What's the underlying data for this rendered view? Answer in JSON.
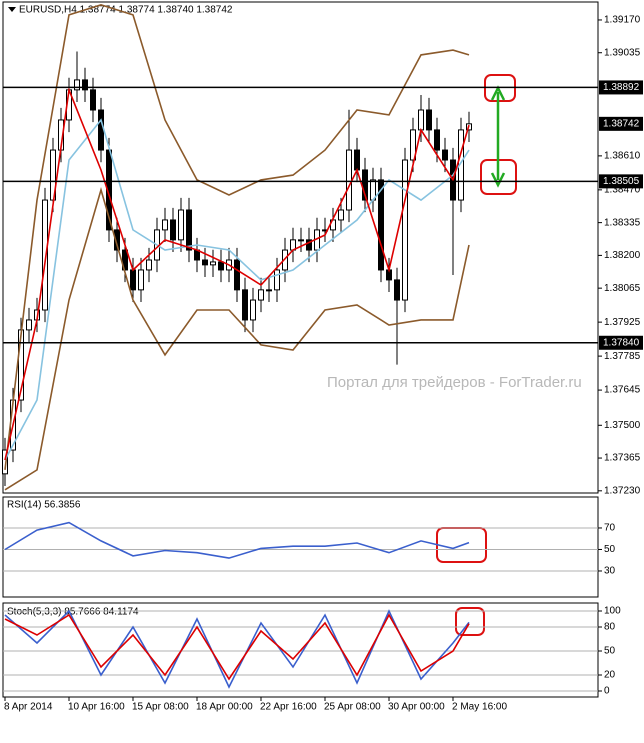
{
  "chart_data": [
    {
      "type": "candlestick",
      "title": "EURUSD,H4 1.38774 1.38774 1.38740 1.38742",
      "watermark": "Портал для трейдеров - ForTrader.ru",
      "xlim": [
        -0.5,
        148.25
      ],
      "ylim": [
        1.37221,
        1.39244
      ],
      "grid": false,
      "yticks": [
        {
          "value": 1.3917,
          "label": "1.39170"
        },
        {
          "value": 1.39035,
          "label": "1.39035"
        },
        {
          "value": 1.3861,
          "label": "1.38610"
        },
        {
          "value": 1.3847,
          "label": "1.38470"
        },
        {
          "value": 1.38335,
          "label": "1.38335"
        },
        {
          "value": 1.382,
          "label": "1.38200"
        },
        {
          "value": 1.38065,
          "label": "1.38065"
        },
        {
          "value": 1.37925,
          "label": "1.37925"
        },
        {
          "value": 1.37785,
          "label": "1.37785"
        },
        {
          "value": 1.37645,
          "label": "1.37645"
        },
        {
          "value": 1.375,
          "label": "1.37500"
        },
        {
          "value": 1.37365,
          "label": "1.37365"
        },
        {
          "value": 1.3723,
          "label": "1.37230"
        }
      ],
      "hlines": [
        {
          "value": 1.38892,
          "label": "1.38892"
        },
        {
          "value": 1.38505,
          "label": "1.38505"
        },
        {
          "value": 1.3784,
          "label": "1.37840"
        }
      ],
      "last_price": {
        "value": 1.38742,
        "label": "1.38742"
      },
      "candle_color": "#000000",
      "x": [
        0,
        2,
        4,
        6,
        8,
        10,
        12,
        14,
        16,
        18,
        20,
        22,
        24,
        26,
        28,
        30,
        32,
        34,
        36,
        38,
        40,
        42,
        44,
        46,
        48,
        50,
        52,
        54,
        56,
        58,
        60,
        62,
        64,
        66,
        68,
        70,
        72,
        74,
        76,
        78,
        80,
        82,
        84,
        86,
        88,
        90,
        92,
        94,
        96,
        98,
        100,
        102,
        104,
        106,
        108,
        110,
        112,
        114,
        116
      ],
      "open": [
        1.373,
        1.37398,
        1.37604,
        1.37893,
        1.37934,
        1.37975,
        1.38428,
        1.38634,
        1.38758,
        1.38882,
        1.38923,
        1.38882,
        1.38799,
        1.38634,
        1.38305,
        1.38222,
        1.3814,
        1.38058,
        1.3814,
        1.38181,
        1.38305,
        1.38346,
        1.38264,
        1.38387,
        1.38222,
        1.38181,
        1.38161,
        1.38173,
        1.3814,
        1.38181,
        1.38058,
        1.37934,
        1.38016,
        1.38058,
        1.38058,
        1.3814,
        1.38222,
        1.38264,
        1.38264,
        1.38222,
        1.38305,
        1.38305,
        1.38346,
        1.38387,
        1.38634,
        1.38552,
        1.38428,
        1.38511,
        1.3814,
        1.38099,
        1.38016,
        1.38593,
        1.38717,
        1.38799,
        1.38717,
        1.38634,
        1.38593,
        1.38428,
        1.38717
      ],
      "high": [
        1.37448,
        1.37654,
        1.37943,
        1.37984,
        1.38025,
        1.38478,
        1.38684,
        1.38808,
        1.38932,
        1.3904,
        1.38973,
        1.38932,
        1.38849,
        1.38684,
        1.38355,
        1.38272,
        1.3819,
        1.3819,
        1.38231,
        1.38355,
        1.38396,
        1.38396,
        1.38437,
        1.38437,
        1.38272,
        1.38231,
        1.38223,
        1.38223,
        1.38231,
        1.38231,
        1.38108,
        1.38066,
        1.38108,
        1.38108,
        1.3819,
        1.38272,
        1.38314,
        1.38314,
        1.38314,
        1.38355,
        1.38355,
        1.38396,
        1.38437,
        1.388,
        1.38684,
        1.38602,
        1.38561,
        1.38561,
        1.3819,
        1.38149,
        1.38643,
        1.38767,
        1.38861,
        1.38849,
        1.38767,
        1.38684,
        1.38643,
        1.38767,
        1.38792
      ],
      "low": [
        1.3725,
        1.37348,
        1.37554,
        1.37843,
        1.37884,
        1.37925,
        1.38378,
        1.38584,
        1.38708,
        1.38832,
        1.38832,
        1.38749,
        1.38584,
        1.38255,
        1.38172,
        1.3809,
        1.38008,
        1.38008,
        1.3809,
        1.38131,
        1.38255,
        1.38214,
        1.38214,
        1.38172,
        1.38131,
        1.38111,
        1.38111,
        1.3809,
        1.3809,
        1.38008,
        1.37884,
        1.37884,
        1.37966,
        1.38008,
        1.38008,
        1.3809,
        1.38172,
        1.38214,
        1.38172,
        1.38172,
        1.38255,
        1.38255,
        1.38296,
        1.38337,
        1.38502,
        1.38378,
        1.38378,
        1.3809,
        1.38049,
        1.3775,
        1.37966,
        1.38543,
        1.38667,
        1.38667,
        1.38584,
        1.38543,
        1.38119,
        1.38378,
        1.38667
      ],
      "close": [
        1.37398,
        1.37604,
        1.37893,
        1.37934,
        1.37975,
        1.38428,
        1.38634,
        1.38758,
        1.38882,
        1.38923,
        1.38882,
        1.38799,
        1.38634,
        1.38305,
        1.38222,
        1.3814,
        1.38058,
        1.3814,
        1.38181,
        1.38305,
        1.38346,
        1.38264,
        1.38387,
        1.38222,
        1.38181,
        1.38161,
        1.38173,
        1.3814,
        1.38181,
        1.38058,
        1.37934,
        1.38016,
        1.38058,
        1.38058,
        1.3814,
        1.38222,
        1.38264,
        1.38264,
        1.38222,
        1.38305,
        1.38305,
        1.38346,
        1.38387,
        1.38634,
        1.38552,
        1.38428,
        1.38511,
        1.3814,
        1.38099,
        1.38016,
        1.38593,
        1.38717,
        1.38799,
        1.38717,
        1.38634,
        1.38593,
        1.38428,
        1.38717,
        1.38742
      ],
      "overlay_x": [
        0,
        8,
        16,
        24,
        32,
        40,
        48,
        56,
        64,
        72,
        80,
        88,
        96,
        104,
        112,
        116
      ],
      "overlays": [
        {
          "color": "#8b5a2b",
          "values": [
            1.37316,
            1.38428,
            1.39191,
            1.39232,
            1.39191,
            1.38758,
            1.38511,
            1.38449,
            1.38511,
            1.38531,
            1.38634,
            1.38799,
            1.38779,
            1.39026,
            1.39046,
            1.39026
          ]
        },
        {
          "color": "#8b5a2b",
          "values": [
            1.37234,
            1.37316,
            1.38016,
            1.3847,
            1.38016,
            1.3779,
            1.37975,
            1.37975,
            1.37831,
            1.3781,
            1.37975,
            1.37996,
            1.37913,
            1.37934,
            1.37934,
            1.38243
          ]
        },
        {
          "color": "#87c3e0",
          "values": [
            1.37357,
            1.37604,
            1.38593,
            1.38758,
            1.38305,
            1.38222,
            1.38243,
            1.38222,
            1.38099,
            1.3814,
            1.38243,
            1.38346,
            1.38511,
            1.38428,
            1.38531,
            1.38634
          ]
        },
        {
          "color": "#dd0000",
          "values": [
            1.37357,
            1.37934,
            1.38882,
            1.38552,
            1.3814,
            1.38264,
            1.38222,
            1.38161,
            1.38078,
            1.38222,
            1.38284,
            1.38552,
            1.3814,
            1.38717,
            1.38511,
            1.38737
          ]
        }
      ]
    },
    {
      "type": "line",
      "title": "RSI(14) 56.3856",
      "ylim": [
        5.8,
        98.8
      ],
      "yticks": [
        70,
        50,
        30
      ],
      "grid": true,
      "x": [
        0,
        8,
        16,
        24,
        32,
        40,
        48,
        56,
        64,
        72,
        80,
        88,
        96,
        104,
        112,
        116
      ],
      "series": [
        {
          "color": "#3a5fcd",
          "values": [
            50,
            68,
            75,
            58,
            44,
            49,
            47,
            42,
            51,
            53,
            53,
            56,
            47,
            58,
            51,
            56.39
          ]
        }
      ]
    },
    {
      "type": "line",
      "title": "Stoch(5,3,3) 85.7666 84.1174",
      "ylim": [
        -7.5,
        110
      ],
      "yticks": [
        100,
        80,
        50,
        20,
        0
      ],
      "grid": true,
      "x": [
        0,
        8,
        16,
        24,
        32,
        40,
        48,
        56,
        64,
        72,
        80,
        88,
        96,
        104,
        112,
        116
      ],
      "xticks": [
        {
          "value": 0,
          "label": "8 Apr 2014"
        },
        {
          "value": 16,
          "label": "10 Apr 16:00"
        },
        {
          "value": 32,
          "label": "15 Apr 08:00"
        },
        {
          "value": 48,
          "label": "18 Apr 00:00"
        },
        {
          "value": 64,
          "label": "22 Apr 16:00"
        },
        {
          "value": 80,
          "label": "25 Apr 08:00"
        },
        {
          "value": 96,
          "label": "30 Apr 00:00"
        },
        {
          "value": 112,
          "label": "2 May 16:00"
        }
      ],
      "series": [
        {
          "color": "#3a5fcd",
          "values": [
            95,
            60,
            100,
            20,
            80,
            10,
            90,
            5,
            85,
            30,
            95,
            10,
            100,
            15,
            60,
            85.77
          ]
        },
        {
          "color": "#dd0000",
          "values": [
            90,
            70,
            95,
            30,
            70,
            20,
            80,
            15,
            75,
            40,
            85,
            20,
            95,
            25,
            50,
            84.12
          ]
        }
      ]
    }
  ]
}
